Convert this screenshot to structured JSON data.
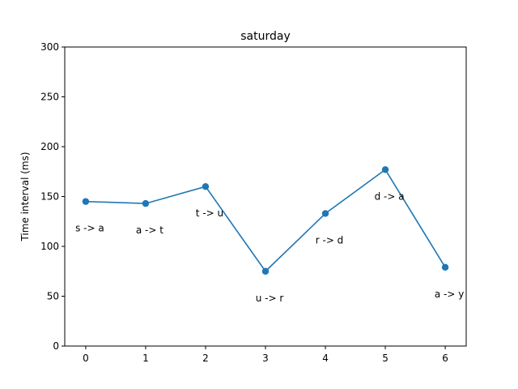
{
  "chart_data": {
    "type": "line",
    "title": "saturday",
    "xlabel": "",
    "ylabel": "Time interval (ms)",
    "x": [
      0,
      1,
      2,
      3,
      4,
      5,
      6
    ],
    "y": [
      145,
      143,
      160,
      75,
      133,
      177,
      79
    ],
    "point_labels": [
      "s -> a",
      "a -> t",
      "t -> u",
      "u -> r",
      "r -> d",
      "d -> a",
      "a -> y"
    ],
    "xlim": [
      -0.35,
      6.35
    ],
    "ylim": [
      0,
      300
    ],
    "xticks": [
      "0",
      "1",
      "2",
      "3",
      "4",
      "5",
      "6"
    ],
    "yticks": [
      "0",
      "50",
      "100",
      "150",
      "200",
      "250",
      "300"
    ],
    "grid": false,
    "colors": {
      "series": "#1f77b4"
    }
  }
}
